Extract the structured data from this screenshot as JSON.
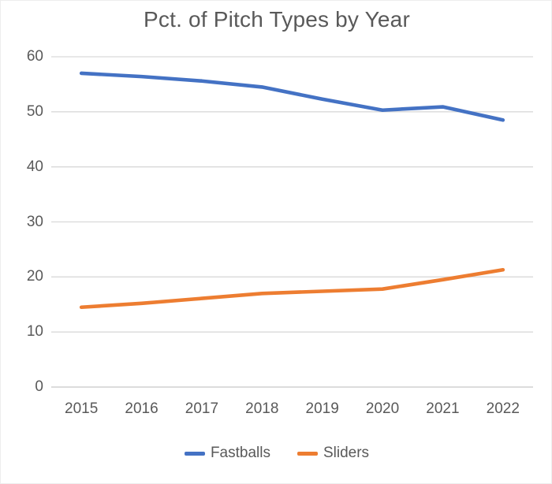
{
  "chart_data": {
    "type": "line",
    "title": "Pct. of Pitch Types by Year",
    "categories": [
      "2015",
      "2016",
      "2017",
      "2018",
      "2019",
      "2020",
      "2021",
      "2022"
    ],
    "series": [
      {
        "name": "Fastballs",
        "color": "#4472C4",
        "values": [
          57.0,
          56.4,
          55.6,
          54.5,
          52.3,
          50.3,
          50.9,
          48.5
        ]
      },
      {
        "name": "Sliders",
        "color": "#ED7D31",
        "values": [
          14.5,
          15.2,
          16.1,
          17.0,
          17.4,
          17.8,
          19.5,
          21.3
        ]
      }
    ],
    "y_ticks": [
      60,
      50,
      40,
      30,
      20,
      10,
      0
    ],
    "ylim": [
      0,
      60
    ],
    "xlabel": "",
    "ylabel": "",
    "grid": "horizontal",
    "legend_position": "bottom"
  },
  "colors": {
    "background": "#FFFFFF",
    "title_text": "#595959",
    "tick_text": "#595959",
    "gridline": "#D9D9D9",
    "axis_line": "#C6C6C6",
    "fastballs_line": "#4472C4",
    "sliders_line": "#ED7D31"
  }
}
